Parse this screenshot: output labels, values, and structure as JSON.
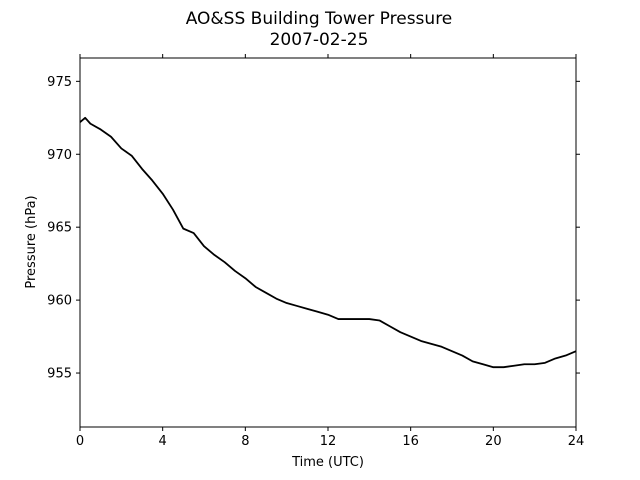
{
  "chart_data": {
    "type": "line",
    "title": "AO&SS Building Tower Pressure",
    "subtitle": "2007-02-25",
    "xlabel": "Time (UTC)",
    "ylabel": "Pressure (hPa)",
    "xlim": [
      0,
      24
    ],
    "ylim": [
      951.3,
      976.6
    ],
    "xticks": [
      0,
      4,
      8,
      12,
      16,
      20,
      24
    ],
    "yticks": [
      955,
      960,
      965,
      970,
      975
    ],
    "grid": false,
    "legend": "none",
    "series": [
      {
        "color": "#000000",
        "x": [
          0,
          0.25,
          0.5,
          1,
          1.5,
          2,
          2.5,
          3,
          3.5,
          4,
          4.5,
          5,
          5.5,
          6,
          6.5,
          7,
          7.5,
          8,
          8.5,
          9,
          9.5,
          10,
          10.5,
          11,
          11.5,
          12,
          12.5,
          13,
          13.5,
          14,
          14.5,
          15,
          15.5,
          16,
          16.5,
          17,
          17.5,
          18,
          18.5,
          19,
          19.5,
          20,
          20.5,
          21,
          21.5,
          22,
          22.5,
          23,
          23.5,
          24
        ],
        "y": [
          972.2,
          972.5,
          972.1,
          971.7,
          971.2,
          970.4,
          969.9,
          969.0,
          968.2,
          967.3,
          966.2,
          964.9,
          964.6,
          963.7,
          963.1,
          962.6,
          962.0,
          961.5,
          960.9,
          960.5,
          960.1,
          959.8,
          959.6,
          959.4,
          959.2,
          959.0,
          958.7,
          958.7,
          958.7,
          958.7,
          958.6,
          958.2,
          957.8,
          957.5,
          957.2,
          957.0,
          956.8,
          956.5,
          956.2,
          955.8,
          955.6,
          955.4,
          955.4,
          955.5,
          955.6,
          955.6,
          955.7,
          956.0,
          956.2,
          956.5
        ]
      }
    ]
  }
}
